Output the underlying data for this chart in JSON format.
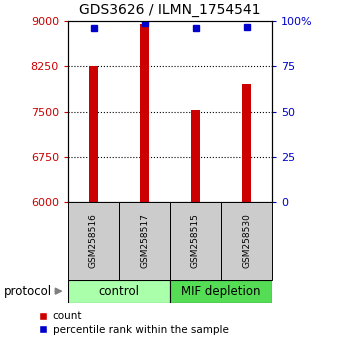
{
  "title": "GDS3626 / ILMN_1754541",
  "samples": [
    "GSM258516",
    "GSM258517",
    "GSM258515",
    "GSM258530"
  ],
  "counts": [
    8260,
    8950,
    7530,
    7960
  ],
  "percentile_ranks": [
    96,
    99,
    96,
    97
  ],
  "groups": [
    "control",
    "control",
    "MIF depletion",
    "MIF depletion"
  ],
  "ylim_left": [
    6000,
    9000
  ],
  "yticks_left": [
    6000,
    6750,
    7500,
    8250,
    9000
  ],
  "yticks_right": [
    0,
    25,
    50,
    75,
    100
  ],
  "bar_color": "#cc0000",
  "dot_color": "#0000cc",
  "control_color": "#aaffaa",
  "depletion_color": "#55dd55",
  "sample_box_color": "#cccccc",
  "left_tick_color": "#cc0000",
  "right_tick_color": "#0000cc",
  "group_label_control": "control",
  "group_label_depletion": "MIF depletion",
  "protocol_label": "protocol",
  "legend_count": "count",
  "legend_percentile": "percentile rank within the sample"
}
